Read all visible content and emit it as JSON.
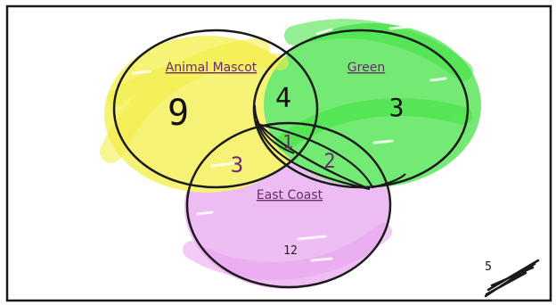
{
  "regions": {
    "animal_mascot": {
      "label": "Animal Mascot",
      "fill": "#f3ee42",
      "only_count": "9",
      "only_count_color": "#111111"
    },
    "green": {
      "label": "Green",
      "fill": "#3ee23e",
      "only_count": "3",
      "only_count_color": "#111111"
    },
    "east_coast": {
      "label": "East Coast",
      "fill": "#e7a3ee",
      "only_count": "12",
      "only_count_color": "#222222"
    }
  },
  "intersections": {
    "mascot_green": {
      "count": "4",
      "color": "#111111"
    },
    "mascot_east": {
      "count": "3",
      "color": "#6a2b6e"
    },
    "all_three": {
      "count": "1",
      "color": "#6a2b6e"
    },
    "green_east": {
      "count": "2",
      "color": "#6a2b6e"
    }
  },
  "outside": {
    "count": "5",
    "color": "#111111"
  },
  "label_color": "#6a2b6e",
  "outline_color": "#1a1a1a"
}
